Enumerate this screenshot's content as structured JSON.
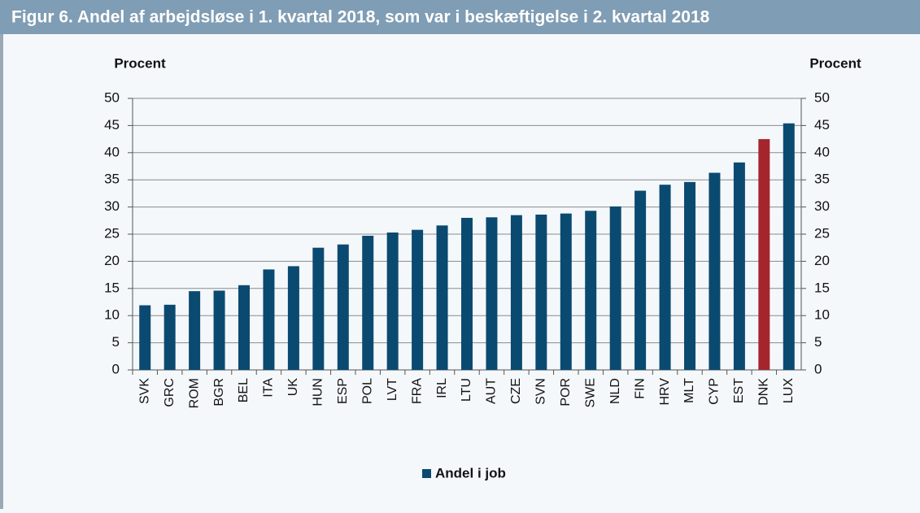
{
  "chart_data": {
    "type": "bar",
    "title": "Figur 6. Andel af arbejdsløse i 1. kvartal 2018, som var i beskæftigelse i 2. kvartal 2018",
    "ylabel": "Procent",
    "y2label": "Procent",
    "categories": [
      "SVK",
      "GRC",
      "ROM",
      "BGR",
      "BEL",
      "ITA",
      "UK",
      "HUN",
      "ESP",
      "POL",
      "LVT",
      "FRA",
      "IRL",
      "LTU",
      "AUT",
      "CZE",
      "SVN",
      "POR",
      "SWE",
      "NLD",
      "FIN",
      "HRV",
      "MLT",
      "CYP",
      "EST",
      "DNK",
      "LUX"
    ],
    "series": [
      {
        "name": "Andel i job",
        "color": "#0b4a70",
        "values": [
          11.9,
          12.0,
          14.5,
          14.6,
          15.6,
          18.5,
          19.1,
          22.5,
          23.1,
          24.7,
          25.3,
          25.8,
          26.6,
          28.0,
          28.1,
          28.5,
          28.6,
          28.8,
          29.3,
          30.1,
          33.0,
          34.1,
          34.6,
          36.3,
          38.2,
          42.5,
          45.4
        ],
        "colors": [
          "#0b4a70",
          "#0b4a70",
          "#0b4a70",
          "#0b4a70",
          "#0b4a70",
          "#0b4a70",
          "#0b4a70",
          "#0b4a70",
          "#0b4a70",
          "#0b4a70",
          "#0b4a70",
          "#0b4a70",
          "#0b4a70",
          "#0b4a70",
          "#0b4a70",
          "#0b4a70",
          "#0b4a70",
          "#0b4a70",
          "#0b4a70",
          "#0b4a70",
          "#0b4a70",
          "#0b4a70",
          "#0b4a70",
          "#0b4a70",
          "#0b4a70",
          "#a4262c",
          "#0b4a70"
        ]
      }
    ],
    "ylim": [
      0,
      50
    ],
    "yticks": [
      0,
      5,
      10,
      15,
      20,
      25,
      30,
      35,
      40,
      45,
      50
    ],
    "y2lim": [
      0,
      50
    ],
    "y2ticks": [
      0,
      5,
      10,
      15,
      20,
      25,
      30,
      35,
      40,
      45,
      50
    ],
    "grid": true,
    "legend": "bottom"
  }
}
